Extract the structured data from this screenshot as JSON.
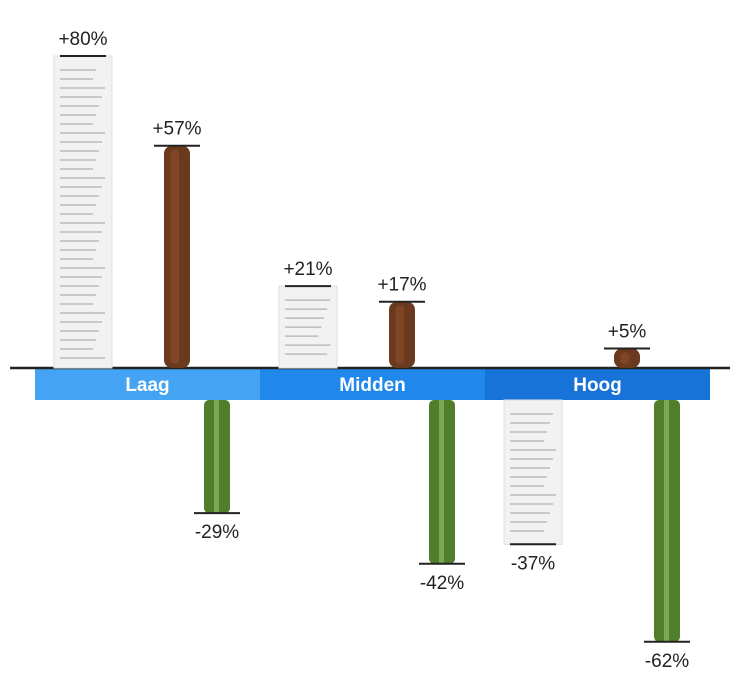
{
  "chart_data": {
    "type": "bar",
    "categories": [
      "Laag",
      "Midden",
      "Hoog"
    ],
    "category_colors": [
      "#44a3f2",
      "#1f88ea",
      "#1873d8"
    ],
    "series": [
      {
        "color": "#f2f2f2",
        "values": [
          80,
          21,
          -37
        ],
        "value_labels": [
          "+80%",
          "+21%",
          "-37%"
        ]
      },
      {
        "color": "#6b3a1e",
        "values": [
          57,
          17,
          5
        ],
        "value_labels": [
          "+57%",
          "+17%",
          "+5%"
        ]
      },
      {
        "color": "#4f7f2a",
        "values": [
          -29,
          -42,
          -62
        ],
        "value_labels": [
          "-29%",
          "-42%",
          "-62%"
        ]
      }
    ]
  }
}
